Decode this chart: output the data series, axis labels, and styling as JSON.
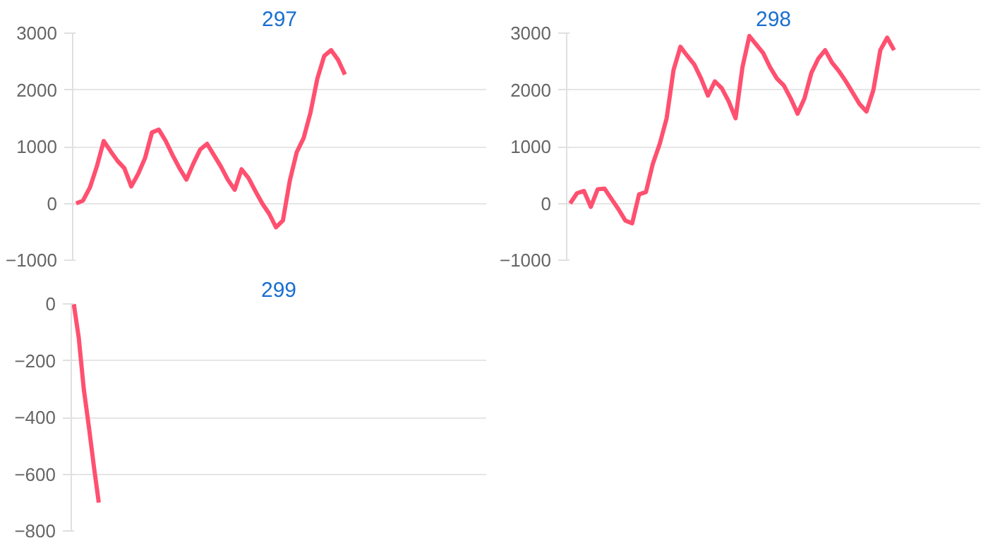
{
  "chart_data": [
    {
      "type": "line",
      "title": "297",
      "categories": [
        null,
        null,
        null,
        null,
        null,
        null,
        null,
        null,
        null,
        null,
        null,
        null,
        null,
        null,
        null,
        null,
        null,
        null,
        null,
        null,
        null,
        null,
        null,
        null,
        null,
        null,
        null,
        null,
        null,
        null,
        null,
        null,
        null,
        null,
        null,
        null,
        null,
        null,
        null,
        null,
        null,
        null,
        null,
        null,
        null,
        null,
        null,
        null,
        null,
        null,
        null,
        null,
        null,
        null,
        null,
        null,
        null,
        null,
        null,
        null
      ],
      "series": [
        {
          "color": "#ff5070",
          "values": [
            0,
            50,
            280,
            650,
            1100,
            920,
            750,
            620,
            300,
            520,
            800,
            1250,
            1300,
            1100,
            850,
            620,
            420,
            700,
            950,
            1050,
            850,
            650,
            420,
            240,
            600,
            450,
            220,
            0,
            -180,
            -420,
            -300,
            400,
            900,
            1150,
            1600,
            2200,
            2600,
            2700,
            2530,
            2270,
            null,
            null,
            null,
            null,
            null,
            null,
            null,
            null,
            null,
            null,
            null,
            null,
            null,
            null,
            null,
            null,
            null,
            null,
            null,
            null
          ]
        }
      ],
      "ylim": [
        -1000,
        3000
      ],
      "yticks": [
        -1000,
        0,
        1000,
        2000,
        3000
      ],
      "grid": "y",
      "tick_labels": "y",
      "marker": "none",
      "line_style": "solid"
    },
    {
      "type": "line",
      "title": "298",
      "categories": [
        null,
        null,
        null,
        null,
        null,
        null,
        null,
        null,
        null,
        null,
        null,
        null,
        null,
        null,
        null,
        null,
        null,
        null,
        null,
        null,
        null,
        null,
        null,
        null,
        null,
        null,
        null,
        null,
        null,
        null,
        null,
        null,
        null,
        null,
        null,
        null,
        null,
        null,
        null,
        null,
        null,
        null,
        null,
        null,
        null,
        null,
        null,
        null,
        null,
        null,
        null,
        null,
        null,
        null,
        null,
        null,
        null,
        null,
        null,
        null
      ],
      "series": [
        {
          "color": "#ff5070",
          "values": [
            0,
            180,
            220,
            -60,
            250,
            260,
            80,
            -100,
            -300,
            -350,
            160,
            200,
            700,
            1050,
            1500,
            2350,
            2760,
            2600,
            2450,
            2200,
            1900,
            2150,
            2030,
            1800,
            1500,
            2400,
            2950,
            2800,
            2650,
            2400,
            2200,
            2080,
            1850,
            1580,
            1850,
            2300,
            2550,
            2700,
            2480,
            2330,
            2150,
            1950,
            1750,
            1620,
            2000,
            2700,
            2920,
            2700,
            null,
            null,
            null,
            null,
            null,
            null,
            null,
            null,
            null,
            null,
            null,
            null
          ]
        }
      ],
      "ylim": [
        -1000,
        3000
      ],
      "yticks": [
        -1000,
        0,
        1000,
        2000,
        3000
      ],
      "grid": "y",
      "tick_labels": "y",
      "marker": "none",
      "line_style": "solid"
    },
    {
      "type": "line",
      "title": "299",
      "categories": [
        null,
        null,
        null,
        null,
        null,
        null,
        null,
        null,
        null,
        null,
        null,
        null,
        null,
        null,
        null,
        null,
        null,
        null,
        null,
        null,
        null,
        null,
        null,
        null,
        null,
        null,
        null,
        null,
        null,
        null,
        null,
        null,
        null,
        null,
        null,
        null,
        null,
        null,
        null,
        null,
        null,
        null,
        null,
        null,
        null,
        null,
        null,
        null,
        null,
        null,
        null,
        null,
        null,
        null,
        null,
        null,
        null,
        null,
        null,
        null,
        null,
        null,
        null,
        null,
        null,
        null,
        null,
        null,
        null,
        null,
        null,
        null,
        null,
        null,
        null,
        null,
        null,
        null,
        null,
        null,
        null,
        null,
        null
      ],
      "series": [
        {
          "color": "#ff5070",
          "values": [
            0,
            -120,
            -300,
            -430,
            -570,
            -700,
            null,
            null,
            null,
            null,
            null,
            null,
            null,
            null,
            null,
            null,
            null,
            null,
            null,
            null,
            null,
            null,
            null,
            null,
            null,
            null,
            null,
            null,
            null,
            null,
            null,
            null,
            null,
            null,
            null,
            null,
            null,
            null,
            null,
            null,
            null,
            null,
            null,
            null,
            null,
            null,
            null,
            null,
            null,
            null,
            null,
            null,
            null,
            null,
            null,
            null,
            null,
            null,
            null,
            null,
            null,
            null,
            null,
            null,
            null,
            null,
            null,
            null,
            null,
            null,
            null,
            null,
            null,
            null,
            null,
            null,
            null,
            null,
            null,
            null,
            null,
            null,
            null
          ]
        }
      ],
      "ylim": [
        -800,
        0
      ],
      "yticks": [
        -800,
        -600,
        -400,
        -200,
        0
      ],
      "grid": "y",
      "tick_labels": "y",
      "marker": "none",
      "line_style": "solid"
    }
  ]
}
